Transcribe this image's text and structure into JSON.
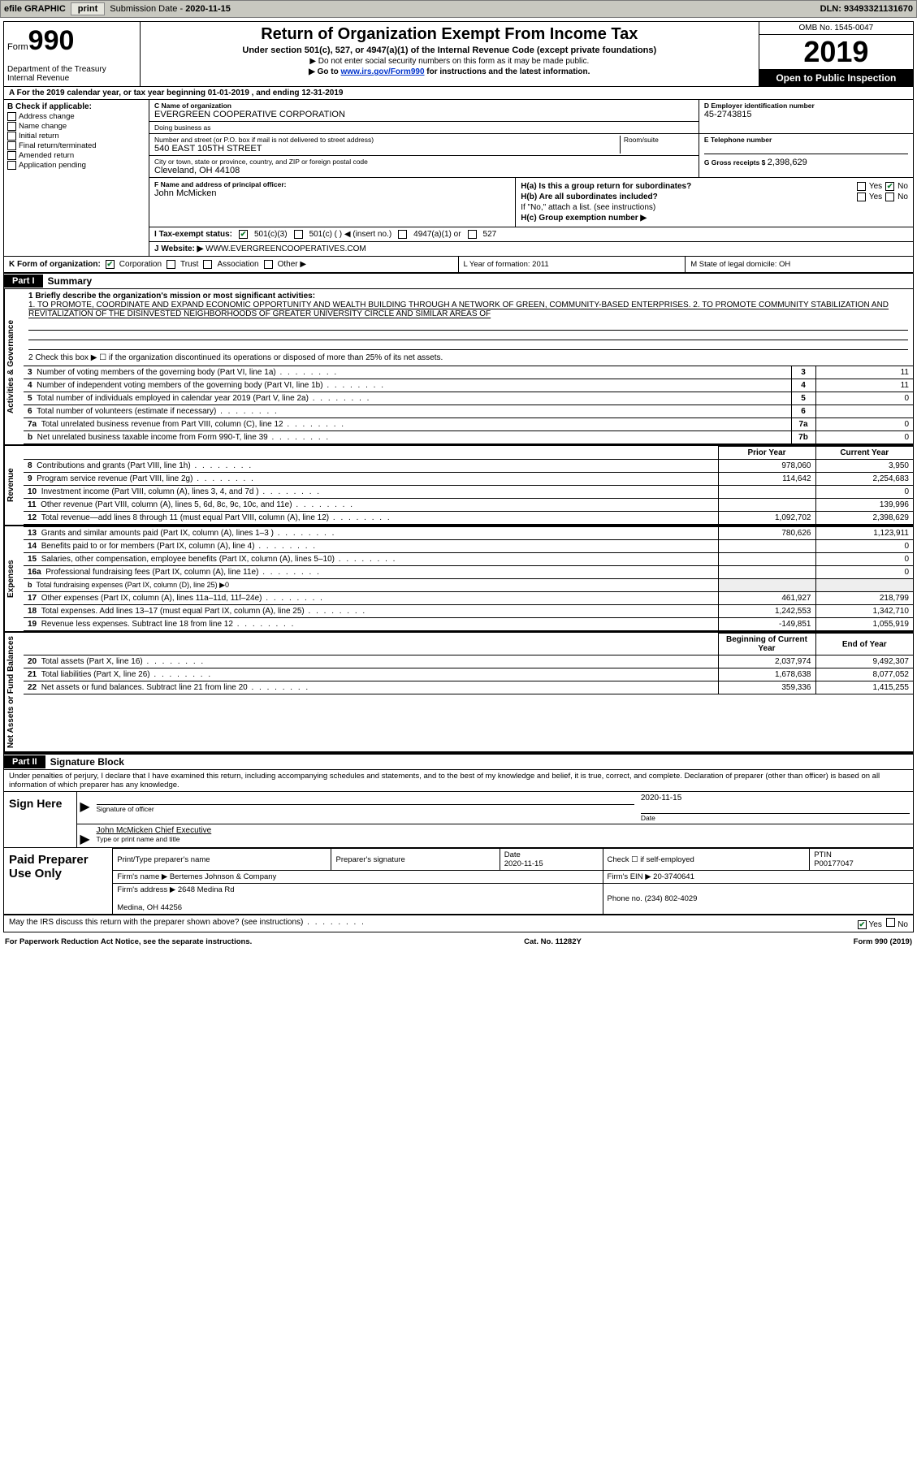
{
  "colors": {
    "topbar_bg": "#c8c8c0",
    "btn_bg": "#e6e6de",
    "link": "#0033cc",
    "check_green": "#0a7a2a",
    "black": "#000000",
    "shade": "#eeeeee"
  },
  "topbar": {
    "efile": "efile GRAPHIC",
    "print": "print",
    "sub_label": "Submission Date - ",
    "sub_date": "2020-11-15",
    "dln_label": "DLN: ",
    "dln": "93493321131670"
  },
  "hdr": {
    "form_word": "Form",
    "form_no": "990",
    "dept": "Department of the Treasury",
    "irs": "Internal Revenue",
    "title": "Return of Organization Exempt From Income Tax",
    "sub": "Under section 501(c), 527, or 4947(a)(1) of the Internal Revenue Code (except private foundations)",
    "note1": "▶ Do not enter social security numbers on this form as it may be made public.",
    "note2_a": "▶ Go to ",
    "note2_link": "www.irs.gov/Form990",
    "note2_b": " for instructions and the latest information.",
    "omb": "OMB No. 1545-0047",
    "year": "2019",
    "open": "Open to Public Inspection"
  },
  "rowA": "A   For the 2019 calendar year, or tax year beginning 01-01-2019  , and ending 12-31-2019",
  "B": {
    "hdr": "B Check if applicable:",
    "items": [
      "Address change",
      "Name change",
      "Initial return",
      "Final return/terminated",
      "Amended return",
      "Application pending"
    ]
  },
  "C": {
    "name_lbl": "C Name of organization",
    "name": "EVERGREEN COOPERATIVE CORPORATION",
    "dba_lbl": "Doing business as",
    "dba": "",
    "street_lbl": "Number and street (or P.O. box if mail is not delivered to street address)",
    "street": "540 EAST 105TH STREET",
    "room_lbl": "Room/suite",
    "room": "",
    "city_lbl": "City or town, state or province, country, and ZIP or foreign postal code",
    "city": "Cleveland, OH  44108"
  },
  "D": {
    "lbl": "D Employer identification number",
    "val": "45-2743815"
  },
  "E": {
    "lbl": "E Telephone number",
    "val": ""
  },
  "G": {
    "lbl": "G Gross receipts $ ",
    "val": "2,398,629"
  },
  "F": {
    "lbl": "F  Name and address of principal officer:",
    "name": "John McMicken"
  },
  "H": {
    "a": "H(a)  Is this a group return for subordinates?",
    "b": "H(b)  Are all subordinates included?",
    "b_note": "If \"No,\" attach a list. (see instructions)",
    "c": "H(c)  Group exemption number ▶",
    "yes": "Yes",
    "no": "No"
  },
  "I": {
    "lbl": "I    Tax-exempt status:",
    "opts": [
      "501(c)(3)",
      "501(c) (  ) ◀ (insert no.)",
      "4947(a)(1) or",
      "527"
    ]
  },
  "J": {
    "lbl": "J    Website: ▶",
    "val": "WWW.EVERGREENCOOPERATIVES.COM"
  },
  "K": {
    "lbl": "K Form of organization:",
    "opts": [
      "Corporation",
      "Trust",
      "Association",
      "Other ▶"
    ]
  },
  "L": "L Year of formation: 2011",
  "M": "M State of legal domicile: OH",
  "partI": {
    "tag": "Part I",
    "title": "Summary"
  },
  "mission": {
    "lead": "1  Briefly describe the organization's mission or most significant activities:",
    "txt": "1. TO PROMOTE, COORDINATE AND EXPAND ECONOMIC OPPORTUNITY AND WEALTH BUILDING THROUGH A NETWORK OF GREEN, COMMUNITY-BASED ENTERPRISES. 2. TO PROMOTE COMMUNITY STABILIZATION AND REVITALIZATION OF THE DISINVESTED NEIGHBORHOODS OF GREATER UNIVERSITY CIRCLE AND SIMILAR AREAS OF"
  },
  "line2": "2   Check this box ▶ ☐  if the organization discontinued its operations or disposed of more than 25% of its net assets.",
  "vtabs": {
    "ag": "Activities & Governance",
    "rev": "Revenue",
    "exp": "Expenses",
    "nab": "Net Assets or Fund Balances"
  },
  "gov_rows": [
    {
      "n": "3",
      "t": "Number of voting members of the governing body (Part VI, line 1a)",
      "k": "3",
      "v": "11"
    },
    {
      "n": "4",
      "t": "Number of independent voting members of the governing body (Part VI, line 1b)",
      "k": "4",
      "v": "11"
    },
    {
      "n": "5",
      "t": "Total number of individuals employed in calendar year 2019 (Part V, line 2a)",
      "k": "5",
      "v": "0"
    },
    {
      "n": "6",
      "t": "Total number of volunteers (estimate if necessary)",
      "k": "6",
      "v": ""
    },
    {
      "n": "7a",
      "t": "Total unrelated business revenue from Part VIII, column (C), line 12",
      "k": "7a",
      "v": "0"
    },
    {
      "n": "b",
      "t": "Net unrelated business taxable income from Form 990-T, line 39",
      "k": "7b",
      "v": "0"
    }
  ],
  "col_hdrs": {
    "prior": "Prior Year",
    "curr": "Current Year",
    "boy": "Beginning of Current Year",
    "eoy": "End of Year"
  },
  "rev_rows": [
    {
      "n": "8",
      "t": "Contributions and grants (Part VIII, line 1h)",
      "p": "978,060",
      "c": "3,950"
    },
    {
      "n": "9",
      "t": "Program service revenue (Part VIII, line 2g)",
      "p": "114,642",
      "c": "2,254,683"
    },
    {
      "n": "10",
      "t": "Investment income (Part VIII, column (A), lines 3, 4, and 7d )",
      "p": "",
      "c": "0"
    },
    {
      "n": "11",
      "t": "Other revenue (Part VIII, column (A), lines 5, 6d, 8c, 9c, 10c, and 11e)",
      "p": "",
      "c": "139,996"
    },
    {
      "n": "12",
      "t": "Total revenue—add lines 8 through 11 (must equal Part VIII, column (A), line 12)",
      "p": "1,092,702",
      "c": "2,398,629"
    }
  ],
  "exp_rows": [
    {
      "n": "13",
      "t": "Grants and similar amounts paid (Part IX, column (A), lines 1–3 )",
      "p": "780,626",
      "c": "1,123,911"
    },
    {
      "n": "14",
      "t": "Benefits paid to or for members (Part IX, column (A), line 4)",
      "p": "",
      "c": "0"
    },
    {
      "n": "15",
      "t": "Salaries, other compensation, employee benefits (Part IX, column (A), lines 5–10)",
      "p": "",
      "c": "0"
    },
    {
      "n": "16a",
      "t": "Professional fundraising fees (Part IX, column (A), line 11e)",
      "p": "",
      "c": "0"
    },
    {
      "n": "b",
      "t": "Total fundraising expenses (Part IX, column (D), line 25) ▶0",
      "p": "—",
      "c": "—"
    },
    {
      "n": "17",
      "t": "Other expenses (Part IX, column (A), lines 11a–11d, 11f–24e)",
      "p": "461,927",
      "c": "218,799"
    },
    {
      "n": "18",
      "t": "Total expenses. Add lines 13–17 (must equal Part IX, column (A), line 25)",
      "p": "1,242,553",
      "c": "1,342,710"
    },
    {
      "n": "19",
      "t": "Revenue less expenses. Subtract line 18 from line 12",
      "p": "-149,851",
      "c": "1,055,919"
    }
  ],
  "nab_rows": [
    {
      "n": "20",
      "t": "Total assets (Part X, line 16)",
      "p": "2,037,974",
      "c": "9,492,307"
    },
    {
      "n": "21",
      "t": "Total liabilities (Part X, line 26)",
      "p": "1,678,638",
      "c": "8,077,052"
    },
    {
      "n": "22",
      "t": "Net assets or fund balances. Subtract line 21 from line 20",
      "p": "359,336",
      "c": "1,415,255"
    }
  ],
  "partII": {
    "tag": "Part II",
    "title": "Signature Block"
  },
  "perjury": "Under penalties of perjury, I declare that I have examined this return, including accompanying schedules and statements, and to the best of my knowledge and belief, it is true, correct, and complete. Declaration of preparer (other than officer) is based on all information of which preparer has any knowledge.",
  "sign": {
    "here": "Sign Here",
    "sig_lbl": "Signature of officer",
    "date_lbl": "Date",
    "date": "2020-11-15",
    "typed": "John McMicken  Chief Executive",
    "typed_lbl": "Type or print name and title"
  },
  "paid": {
    "left": "Paid Preparer Use Only",
    "h1": "Print/Type preparer's name",
    "h2": "Preparer's signature",
    "h3": "Date",
    "h3v": "2020-11-15",
    "h4": "Check ☐ if self-employed",
    "h5": "PTIN",
    "h5v": "P00177047",
    "firm_name_lbl": "Firm's name    ▶",
    "firm_name": "Bertemes Johnson & Company",
    "firm_ein_lbl": "Firm's EIN ▶",
    "firm_ein": "20-3740641",
    "firm_addr_lbl": "Firm's address ▶",
    "firm_addr": "2648 Medina Rd",
    "firm_addr2": "Medina, OH  44256",
    "phone_lbl": "Phone no. ",
    "phone": "(234) 802-4029"
  },
  "discuss": "May the IRS discuss this return with the preparer shown above? (see instructions)",
  "discuss_yes": "Yes",
  "discuss_no": "No",
  "foot": {
    "pra": "For Paperwork Reduction Act Notice, see the separate instructions.",
    "cat": "Cat. No. 11282Y",
    "form": "Form 990 (2019)"
  }
}
